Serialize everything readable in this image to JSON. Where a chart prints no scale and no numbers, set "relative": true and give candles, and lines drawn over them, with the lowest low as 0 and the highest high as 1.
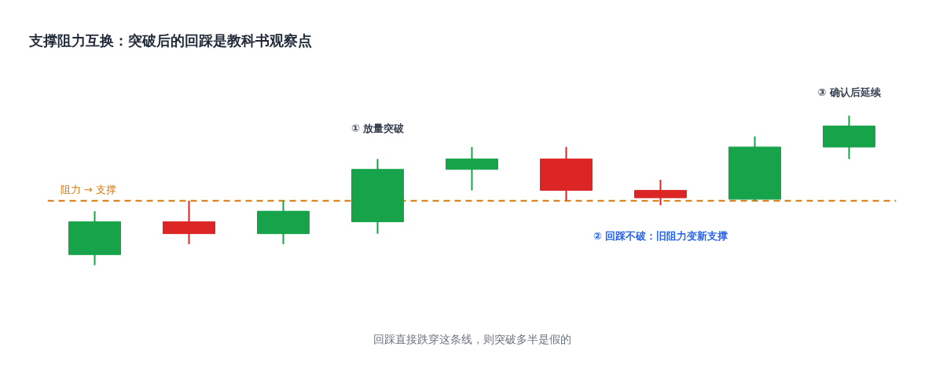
{
  "chart_data": {
    "type": "candlestick",
    "title": "支撑阻力互换：突破后的回踩是教科书观察点",
    "categories": [
      null,
      null,
      null,
      null,
      null,
      null,
      null,
      null,
      null
    ],
    "ohlc": [
      [
        0.07,
        0.36,
        0,
        0.29
      ],
      [
        0.29,
        0.43,
        0.14,
        0.21
      ],
      [
        0.21,
        0.43,
        0.14,
        0.36
      ],
      [
        0.29,
        0.71,
        0.21,
        0.64
      ],
      [
        0.64,
        0.79,
        0.5,
        0.71
      ],
      [
        0.71,
        0.79,
        0.43,
        0.5
      ],
      [
        0.5,
        0.57,
        0.4,
        0.45
      ],
      [
        0.44,
        0.86,
        0.43,
        0.79
      ],
      [
        0.79,
        1,
        0.71,
        0.93
      ]
    ],
    "colors": [
      "#16a34a",
      "#dc2626",
      "#16a34a",
      "#16a34a",
      "#16a34a",
      "#dc2626",
      "#dc2626",
      "#16a34a",
      "#16a34a"
    ],
    "relative": true,
    "grid": false,
    "ref_lines": [
      {
        "axis": "y",
        "value": 0.43,
        "label": "阻力 → 支撑",
        "color": "#d97706",
        "line_style": "dashed"
      }
    ],
    "annotations": [
      "① 放量突破",
      "② 回踩不破：旧阻力变新支撑",
      "③ 确认后延续",
      "回踩直接跌穿这条线，则突破多半是假的"
    ]
  }
}
